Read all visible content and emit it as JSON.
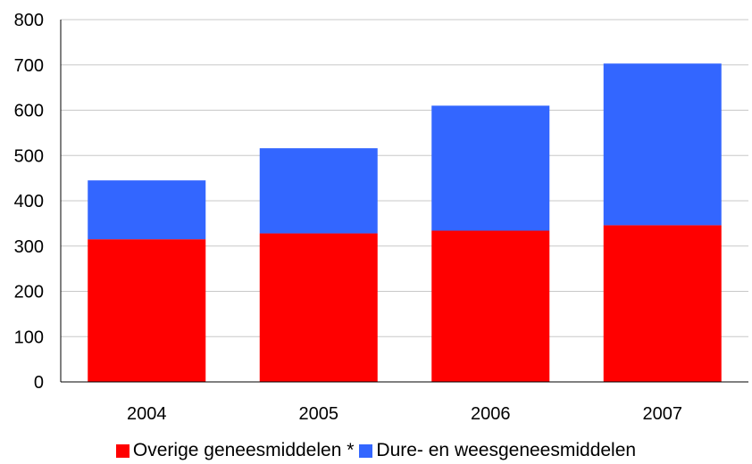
{
  "chart_data": {
    "type": "bar",
    "stacked": true,
    "categories": [
      "2004",
      "2005",
      "2006",
      "2007"
    ],
    "series": [
      {
        "name": "Overige geneesmiddelen *",
        "color": "#ff0000",
        "values": [
          315,
          328,
          334,
          346
        ]
      },
      {
        "name": "Dure- en weesgeneesmiddelen",
        "color": "#3366ff",
        "values": [
          130,
          188,
          276,
          357
        ]
      }
    ],
    "ylim": [
      0,
      800
    ],
    "yticks": [
      "0",
      "100",
      "200",
      "300",
      "400",
      "500",
      "600",
      "700",
      "800"
    ],
    "grid": true,
    "legend_position": "bottom"
  }
}
